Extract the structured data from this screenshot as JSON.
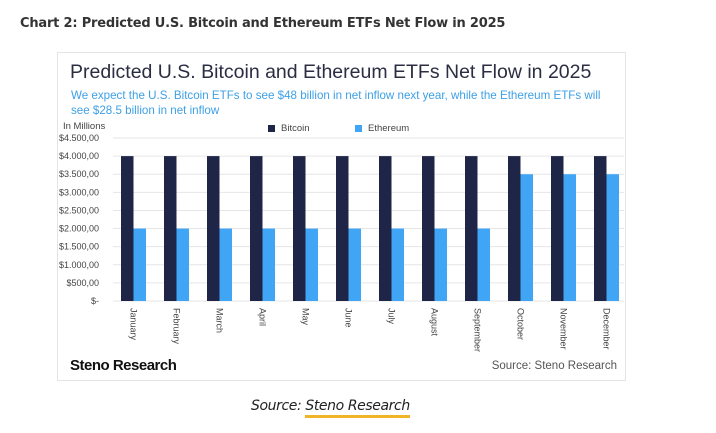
{
  "page": {
    "heading": "Chart 2: Predicted U.S. Bitcoin and Ethereum ETFs Net Flow in 2025",
    "caption_prefix": "Source: ",
    "caption_link": "Steno Research"
  },
  "card": {
    "brand": "Steno Research",
    "source": "Source: Steno Research"
  },
  "colors": {
    "bitcoin": "#1f2547",
    "ethereum": "#41a5f5",
    "subtitle": "#3da0e6",
    "caption_underline": "#f0b429"
  },
  "chart_data": {
    "type": "bar",
    "title": "Predicted U.S. Bitcoin and Ethereum ETFs Net Flow in 2025",
    "subtitle": "We expect the U.S. Bitcoin ETFs to see $48 billion in net inflow next year, while the Ethereum ETFs will see $28.5 billion in net inflow",
    "ylabel": "In Millions",
    "xlabel": "",
    "ylim": [
      0,
      4500
    ],
    "yticks": [
      0,
      500,
      1000,
      1500,
      2000,
      2500,
      3000,
      3500,
      4000,
      4500
    ],
    "ytick_labels": [
      "$-",
      "$500,00",
      "$1.000,00",
      "$1.500,00",
      "$2.000,00",
      "$2.500,00",
      "$3.000,00",
      "$3.500,00",
      "$4.000,00",
      "$4.500,00"
    ],
    "grid": true,
    "legend_position": "top-center",
    "categories": [
      "January",
      "February",
      "March",
      "April",
      "May",
      "June",
      "July",
      "August",
      "September",
      "October",
      "November",
      "December"
    ],
    "series": [
      {
        "name": "Bitcoin",
        "values": [
          4000,
          4000,
          4000,
          4000,
          4000,
          4000,
          4000,
          4000,
          4000,
          4000,
          4000,
          4000
        ]
      },
      {
        "name": "Ethereum",
        "values": [
          2000,
          2000,
          2000,
          2000,
          2000,
          2000,
          2000,
          2000,
          2000,
          3500,
          3500,
          3500
        ]
      }
    ]
  }
}
